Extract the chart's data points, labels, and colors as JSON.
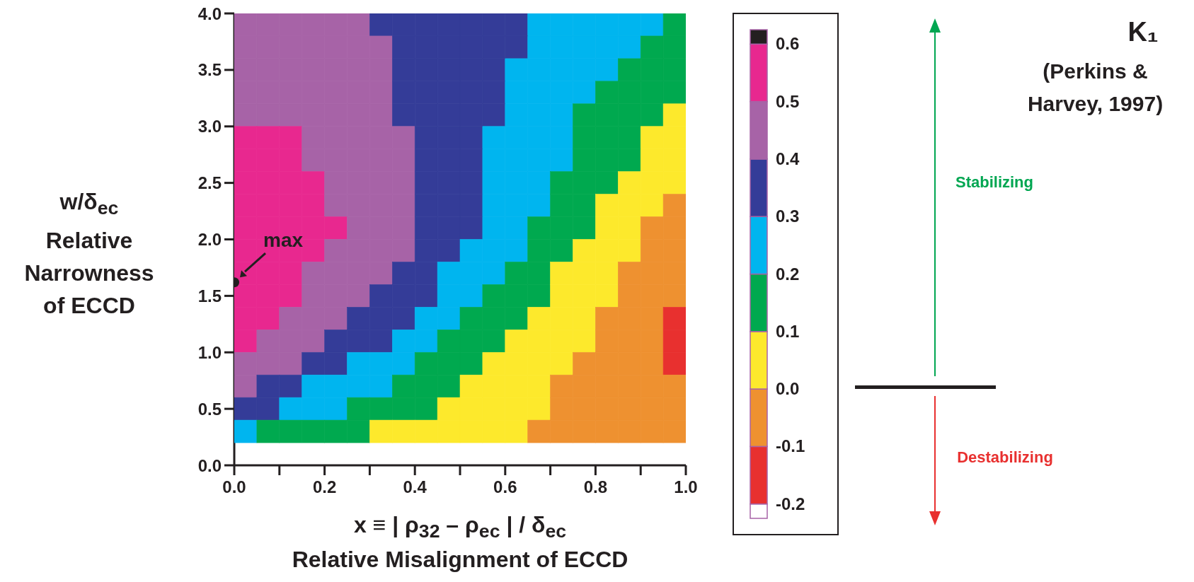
{
  "chart_data": {
    "type": "scatter",
    "xlabel": "x ≡ | ρ$_{32}$ – ρ$_{ec}$ | / δ$_{ec}$\nRelative Misalignment of ECCD",
    "ylabel": "w/δ$_{ec}$\nRelative\nNarrowness\nof ECCD",
    "marker": "square",
    "x": [
      0.025,
      0.075,
      0.125,
      0.175,
      0.225,
      0.275,
      0.325,
      0.375,
      0.425,
      0.475,
      0.525,
      0.575,
      0.625,
      0.675,
      0.725,
      0.775,
      0.825,
      0.875,
      0.925,
      0.975
    ],
    "series": [
      {
        "values": [
          3.9,
          3.9,
          3.9,
          3.9,
          3.9,
          3.9,
          3.9,
          3.9,
          3.9,
          3.9,
          3.9,
          3.9,
          3.9,
          3.9,
          3.9,
          3.9,
          3.9,
          3.9,
          3.9,
          3.9
        ],
        "colors": [
          "#a763a7",
          "#a763a7",
          "#a763a7",
          "#a763a7",
          "#a763a7",
          "#a763a7",
          "#343c98",
          "#343c98",
          "#343c98",
          "#343c98",
          "#343c98",
          "#343c98",
          "#343c98",
          "#00b5ef",
          "#00b5ef",
          "#00b5ef",
          "#00b5ef",
          "#00b5ef",
          "#00b5ef",
          "#00a94f"
        ]
      },
      {
        "values": [
          3.7,
          3.7,
          3.7,
          3.7,
          3.7,
          3.7,
          3.7,
          3.7,
          3.7,
          3.7,
          3.7,
          3.7,
          3.7,
          3.7,
          3.7,
          3.7,
          3.7,
          3.7,
          3.7,
          3.7
        ],
        "colors": [
          "#a763a7",
          "#a763a7",
          "#a763a7",
          "#a763a7",
          "#a763a7",
          "#a763a7",
          "#a763a7",
          "#343c98",
          "#343c98",
          "#343c98",
          "#343c98",
          "#343c98",
          "#343c98",
          "#00b5ef",
          "#00b5ef",
          "#00b5ef",
          "#00b5ef",
          "#00b5ef",
          "#00a94f",
          "#00a94f"
        ]
      },
      {
        "values": [
          3.5,
          3.5,
          3.5,
          3.5,
          3.5,
          3.5,
          3.5,
          3.5,
          3.5,
          3.5,
          3.5,
          3.5,
          3.5,
          3.5,
          3.5,
          3.5,
          3.5,
          3.5,
          3.5,
          3.5
        ],
        "colors": [
          "#a763a7",
          "#a763a7",
          "#a763a7",
          "#a763a7",
          "#a763a7",
          "#a763a7",
          "#a763a7",
          "#343c98",
          "#343c98",
          "#343c98",
          "#343c98",
          "#343c98",
          "#00b5ef",
          "#00b5ef",
          "#00b5ef",
          "#00b5ef",
          "#00b5ef",
          "#00a94f",
          "#00a94f",
          "#00a94f"
        ]
      },
      {
        "values": [
          3.3,
          3.3,
          3.3,
          3.3,
          3.3,
          3.3,
          3.3,
          3.3,
          3.3,
          3.3,
          3.3,
          3.3,
          3.3,
          3.3,
          3.3,
          3.3,
          3.3,
          3.3,
          3.3,
          3.3
        ],
        "colors": [
          "#a763a7",
          "#a763a7",
          "#a763a7",
          "#a763a7",
          "#a763a7",
          "#a763a7",
          "#a763a7",
          "#343c98",
          "#343c98",
          "#343c98",
          "#343c98",
          "#343c98",
          "#00b5ef",
          "#00b5ef",
          "#00b5ef",
          "#00b5ef",
          "#00a94f",
          "#00a94f",
          "#00a94f",
          "#00a94f"
        ]
      },
      {
        "values": [
          3.1,
          3.1,
          3.1,
          3.1,
          3.1,
          3.1,
          3.1,
          3.1,
          3.1,
          3.1,
          3.1,
          3.1,
          3.1,
          3.1,
          3.1,
          3.1,
          3.1,
          3.1,
          3.1,
          3.1
        ],
        "colors": [
          "#a763a7",
          "#a763a7",
          "#a763a7",
          "#a763a7",
          "#a763a7",
          "#a763a7",
          "#a763a7",
          "#343c98",
          "#343c98",
          "#343c98",
          "#343c98",
          "#343c98",
          "#00b5ef",
          "#00b5ef",
          "#00b5ef",
          "#00a94f",
          "#00a94f",
          "#00a94f",
          "#00a94f",
          "#fde92c"
        ]
      },
      {
        "values": [
          2.9,
          2.9,
          2.9,
          2.9,
          2.9,
          2.9,
          2.9,
          2.9,
          2.9,
          2.9,
          2.9,
          2.9,
          2.9,
          2.9,
          2.9,
          2.9,
          2.9,
          2.9,
          2.9,
          2.9
        ],
        "colors": [
          "#e8288f",
          "#e8288f",
          "#e8288f",
          "#a763a7",
          "#a763a7",
          "#a763a7",
          "#a763a7",
          "#a763a7",
          "#343c98",
          "#343c98",
          "#343c98",
          "#00b5ef",
          "#00b5ef",
          "#00b5ef",
          "#00b5ef",
          "#00a94f",
          "#00a94f",
          "#00a94f",
          "#fde92c",
          "#fde92c"
        ]
      },
      {
        "values": [
          2.7,
          2.7,
          2.7,
          2.7,
          2.7,
          2.7,
          2.7,
          2.7,
          2.7,
          2.7,
          2.7,
          2.7,
          2.7,
          2.7,
          2.7,
          2.7,
          2.7,
          2.7,
          2.7,
          2.7
        ],
        "colors": [
          "#e8288f",
          "#e8288f",
          "#e8288f",
          "#a763a7",
          "#a763a7",
          "#a763a7",
          "#a763a7",
          "#a763a7",
          "#343c98",
          "#343c98",
          "#343c98",
          "#00b5ef",
          "#00b5ef",
          "#00b5ef",
          "#00b5ef",
          "#00a94f",
          "#00a94f",
          "#00a94f",
          "#fde92c",
          "#fde92c"
        ]
      },
      {
        "values": [
          2.5,
          2.5,
          2.5,
          2.5,
          2.5,
          2.5,
          2.5,
          2.5,
          2.5,
          2.5,
          2.5,
          2.5,
          2.5,
          2.5,
          2.5,
          2.5,
          2.5,
          2.5,
          2.5,
          2.5
        ],
        "colors": [
          "#e8288f",
          "#e8288f",
          "#e8288f",
          "#e8288f",
          "#a763a7",
          "#a763a7",
          "#a763a7",
          "#a763a7",
          "#343c98",
          "#343c98",
          "#343c98",
          "#00b5ef",
          "#00b5ef",
          "#00b5ef",
          "#00a94f",
          "#00a94f",
          "#00a94f",
          "#fde92c",
          "#fde92c",
          "#fde92c"
        ]
      },
      {
        "values": [
          2.3,
          2.3,
          2.3,
          2.3,
          2.3,
          2.3,
          2.3,
          2.3,
          2.3,
          2.3,
          2.3,
          2.3,
          2.3,
          2.3,
          2.3,
          2.3,
          2.3,
          2.3,
          2.3,
          2.3
        ],
        "colors": [
          "#e8288f",
          "#e8288f",
          "#e8288f",
          "#e8288f",
          "#a763a7",
          "#a763a7",
          "#a763a7",
          "#a763a7",
          "#343c98",
          "#343c98",
          "#343c98",
          "#00b5ef",
          "#00b5ef",
          "#00b5ef",
          "#00a94f",
          "#00a94f",
          "#fde92c",
          "#fde92c",
          "#fde92c",
          "#ee9130"
        ]
      },
      {
        "values": [
          2.1,
          2.1,
          2.1,
          2.1,
          2.1,
          2.1,
          2.1,
          2.1,
          2.1,
          2.1,
          2.1,
          2.1,
          2.1,
          2.1,
          2.1,
          2.1,
          2.1,
          2.1,
          2.1,
          2.1
        ],
        "colors": [
          "#e8288f",
          "#e8288f",
          "#e8288f",
          "#e8288f",
          "#e8288f",
          "#a763a7",
          "#a763a7",
          "#a763a7",
          "#343c98",
          "#343c98",
          "#343c98",
          "#00b5ef",
          "#00b5ef",
          "#00a94f",
          "#00a94f",
          "#00a94f",
          "#fde92c",
          "#fde92c",
          "#ee9130",
          "#ee9130"
        ]
      },
      {
        "values": [
          1.9,
          1.9,
          1.9,
          1.9,
          1.9,
          1.9,
          1.9,
          1.9,
          1.9,
          1.9,
          1.9,
          1.9,
          1.9,
          1.9,
          1.9,
          1.9,
          1.9,
          1.9,
          1.9,
          1.9
        ],
        "colors": [
          "#e8288f",
          "#e8288f",
          "#e8288f",
          "#e8288f",
          "#a763a7",
          "#a763a7",
          "#a763a7",
          "#a763a7",
          "#343c98",
          "#343c98",
          "#00b5ef",
          "#00b5ef",
          "#00b5ef",
          "#00a94f",
          "#00a94f",
          "#fde92c",
          "#fde92c",
          "#fde92c",
          "#ee9130",
          "#ee9130"
        ]
      },
      {
        "values": [
          1.7,
          1.7,
          1.7,
          1.7,
          1.7,
          1.7,
          1.7,
          1.7,
          1.7,
          1.7,
          1.7,
          1.7,
          1.7,
          1.7,
          1.7,
          1.7,
          1.7,
          1.7,
          1.7,
          1.7
        ],
        "colors": [
          "#e8288f",
          "#e8288f",
          "#e8288f",
          "#a763a7",
          "#a763a7",
          "#a763a7",
          "#a763a7",
          "#343c98",
          "#343c98",
          "#00b5ef",
          "#00b5ef",
          "#00b5ef",
          "#00a94f",
          "#00a94f",
          "#fde92c",
          "#fde92c",
          "#fde92c",
          "#ee9130",
          "#ee9130",
          "#ee9130"
        ]
      },
      {
        "values": [
          1.5,
          1.5,
          1.5,
          1.5,
          1.5,
          1.5,
          1.5,
          1.5,
          1.5,
          1.5,
          1.5,
          1.5,
          1.5,
          1.5,
          1.5,
          1.5,
          1.5,
          1.5,
          1.5,
          1.5
        ],
        "colors": [
          "#e8288f",
          "#e8288f",
          "#e8288f",
          "#a763a7",
          "#a763a7",
          "#a763a7",
          "#343c98",
          "#343c98",
          "#343c98",
          "#00b5ef",
          "#00b5ef",
          "#00a94f",
          "#00a94f",
          "#00a94f",
          "#fde92c",
          "#fde92c",
          "#fde92c",
          "#ee9130",
          "#ee9130",
          "#ee9130"
        ]
      },
      {
        "values": [
          1.3,
          1.3,
          1.3,
          1.3,
          1.3,
          1.3,
          1.3,
          1.3,
          1.3,
          1.3,
          1.3,
          1.3,
          1.3,
          1.3,
          1.3,
          1.3,
          1.3,
          1.3,
          1.3,
          1.3
        ],
        "colors": [
          "#e8288f",
          "#e8288f",
          "#a763a7",
          "#a763a7",
          "#a763a7",
          "#343c98",
          "#343c98",
          "#343c98",
          "#00b5ef",
          "#00b5ef",
          "#00a94f",
          "#00a94f",
          "#00a94f",
          "#fde92c",
          "#fde92c",
          "#fde92c",
          "#ee9130",
          "#ee9130",
          "#ee9130",
          "#e8302f"
        ]
      },
      {
        "values": [
          1.1,
          1.1,
          1.1,
          1.1,
          1.1,
          1.1,
          1.1,
          1.1,
          1.1,
          1.1,
          1.1,
          1.1,
          1.1,
          1.1,
          1.1,
          1.1,
          1.1,
          1.1,
          1.1,
          1.1
        ],
        "colors": [
          "#e8288f",
          "#a763a7",
          "#a763a7",
          "#a763a7",
          "#343c98",
          "#343c98",
          "#343c98",
          "#00b5ef",
          "#00b5ef",
          "#00a94f",
          "#00a94f",
          "#00a94f",
          "#fde92c",
          "#fde92c",
          "#fde92c",
          "#fde92c",
          "#ee9130",
          "#ee9130",
          "#ee9130",
          "#e8302f"
        ]
      },
      {
        "values": [
          0.9,
          0.9,
          0.9,
          0.9,
          0.9,
          0.9,
          0.9,
          0.9,
          0.9,
          0.9,
          0.9,
          0.9,
          0.9,
          0.9,
          0.9,
          0.9,
          0.9,
          0.9,
          0.9,
          0.9
        ],
        "colors": [
          "#a763a7",
          "#a763a7",
          "#a763a7",
          "#343c98",
          "#343c98",
          "#00b5ef",
          "#00b5ef",
          "#00b5ef",
          "#00a94f",
          "#00a94f",
          "#00a94f",
          "#fde92c",
          "#fde92c",
          "#fde92c",
          "#fde92c",
          "#ee9130",
          "#ee9130",
          "#ee9130",
          "#ee9130",
          "#e8302f"
        ]
      },
      {
        "values": [
          0.7,
          0.7,
          0.7,
          0.7,
          0.7,
          0.7,
          0.7,
          0.7,
          0.7,
          0.7,
          0.7,
          0.7,
          0.7,
          0.7,
          0.7,
          0.7,
          0.7,
          0.7,
          0.7,
          0.7
        ],
        "colors": [
          "#a763a7",
          "#343c98",
          "#343c98",
          "#00b5ef",
          "#00b5ef",
          "#00b5ef",
          "#00b5ef",
          "#00a94f",
          "#00a94f",
          "#00a94f",
          "#fde92c",
          "#fde92c",
          "#fde92c",
          "#fde92c",
          "#ee9130",
          "#ee9130",
          "#ee9130",
          "#ee9130",
          "#ee9130",
          "#ee9130"
        ]
      },
      {
        "values": [
          0.5,
          0.5,
          0.5,
          0.5,
          0.5,
          0.5,
          0.5,
          0.5,
          0.5,
          0.5,
          0.5,
          0.5,
          0.5,
          0.5,
          0.5,
          0.5,
          0.5,
          0.5,
          0.5,
          0.5
        ],
        "colors": [
          "#343c98",
          "#343c98",
          "#00b5ef",
          "#00b5ef",
          "#00b5ef",
          "#00a94f",
          "#00a94f",
          "#00a94f",
          "#00a94f",
          "#fde92c",
          "#fde92c",
          "#fde92c",
          "#fde92c",
          "#fde92c",
          "#ee9130",
          "#ee9130",
          "#ee9130",
          "#ee9130",
          "#ee9130",
          "#ee9130"
        ]
      },
      {
        "values": [
          0.3,
          0.3,
          0.3,
          0.3,
          0.3,
          0.3,
          0.3,
          0.3,
          0.3,
          0.3,
          0.3,
          0.3,
          0.3,
          0.3,
          0.3,
          0.3,
          0.3,
          0.3,
          0.3,
          0.3
        ],
        "colors": [
          "#00b5ef",
          "#00a94f",
          "#00a94f",
          "#00a94f",
          "#00a94f",
          "#00a94f",
          "#fde92c",
          "#fde92c",
          "#fde92c",
          "#fde92c",
          "#fde92c",
          "#fde92c",
          "#fde92c",
          "#ee9130",
          "#ee9130",
          "#ee9130",
          "#ee9130",
          "#ee9130",
          "#ee9130",
          "#ee9130"
        ]
      },
      {
        "x": [
          0
        ],
        "values": [
          1.62
        ],
        "color": "#231f20",
        "marker": "circle"
      }
    ],
    "xlim": [
      0,
      1
    ],
    "xticks": [
      {
        "value": 0,
        "label": "0.0"
      },
      {
        "value": 0.1,
        "label": null
      },
      {
        "value": 0.2,
        "label": "0.2"
      },
      {
        "value": 0.3,
        "label": null
      },
      {
        "value": 0.4,
        "label": "0.4"
      },
      {
        "value": 0.5,
        "label": null
      },
      {
        "value": 0.6,
        "label": "0.6"
      },
      {
        "value": 0.7,
        "label": null
      },
      {
        "value": 0.8,
        "label": "0.8"
      },
      {
        "value": 0.9,
        "label": null
      },
      {
        "value": 1,
        "label": "1.0"
      }
    ],
    "ylim": [
      0,
      4
    ],
    "yticks": [
      {
        "value": 0,
        "label": "0.0"
      },
      {
        "value": 0.5,
        "label": "0.5"
      },
      {
        "value": 1,
        "label": "1.0"
      },
      {
        "value": 1.5,
        "label": "1.5"
      },
      {
        "value": 2,
        "label": "2.0"
      },
      {
        "value": 2.5,
        "label": "2.5"
      },
      {
        "value": 3,
        "label": "3.0"
      },
      {
        "value": 3.5,
        "label": "3.5"
      },
      {
        "value": 4,
        "label": "4.0"
      }
    ],
    "clim": [
      -0.225,
      0.625
    ],
    "cticks": [
      {
        "value": -0.2,
        "label": "-0.2"
      },
      {
        "value": -0.1,
        "label": "-0.1"
      },
      {
        "value": 0,
        "label": "0.0"
      },
      {
        "value": 0.1,
        "label": "0.1"
      },
      {
        "value": 0.2,
        "label": "0.2"
      },
      {
        "value": 0.3,
        "label": "0.3"
      },
      {
        "value": 0.4,
        "label": "0.4"
      },
      {
        "value": 0.5,
        "label": "0.5"
      },
      {
        "value": 0.6,
        "label": "0.6"
      }
    ],
    "colors": [
      "#ffffff",
      "#e8302f",
      "#ee9130",
      "#fde92c",
      "#00a94f",
      "#00b5ef",
      "#343c98",
      "#a763a7",
      "#e8288f",
      "#231f20"
    ],
    "annotations": [
      "K₁",
      "(Perkins & Harvey, 1997)",
      "Stabilizing",
      "Destabilizing",
      {
        "text": "max",
        "x": 0,
        "y": 1.62
      }
    ]
  }
}
